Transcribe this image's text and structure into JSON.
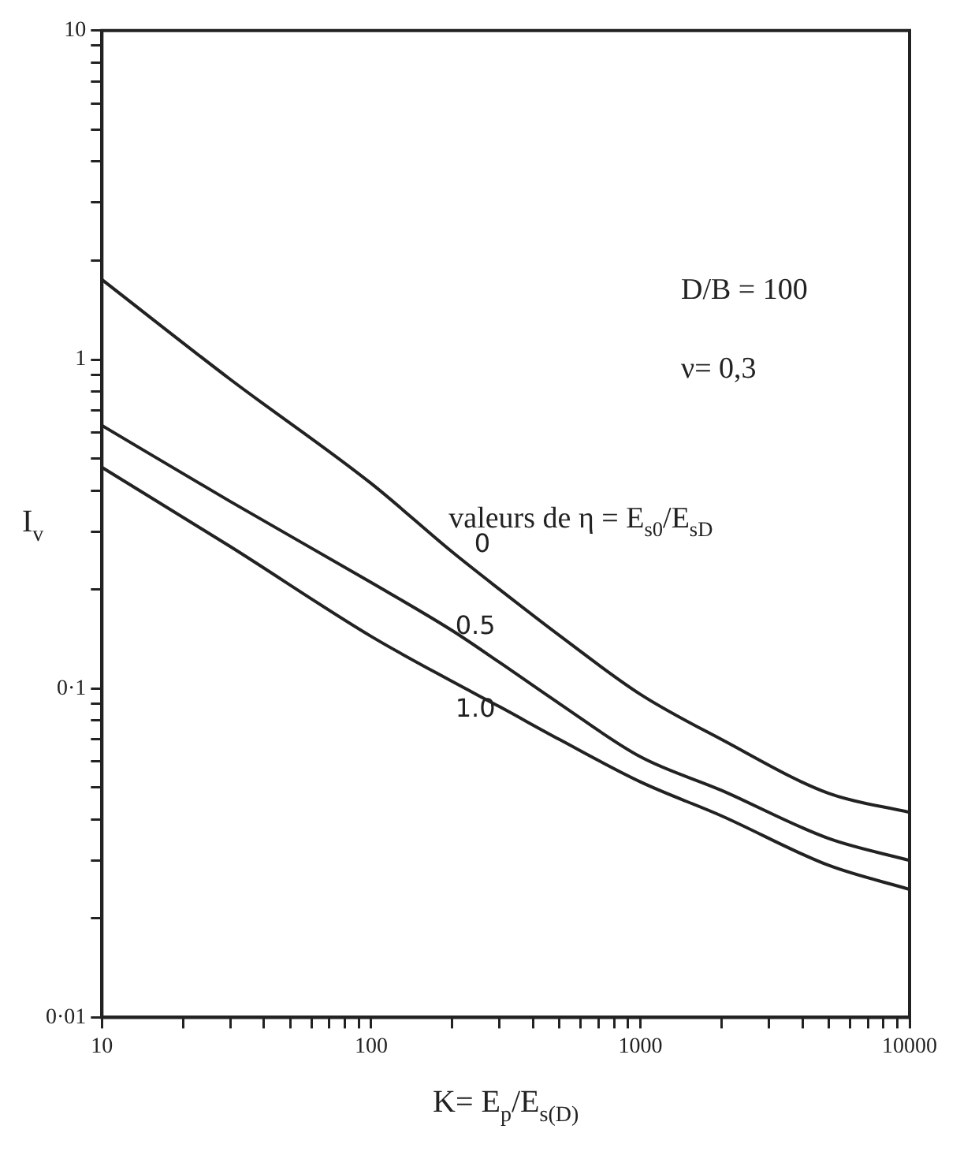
{
  "chart_data": {
    "type": "line",
    "xlabel": "K= E$_{p}$/E$_{s(D)}$",
    "ylabel": "I$_{v}$",
    "annotations": [
      "D/B = 100",
      "ν= 0,3",
      "valeurs de η = E$_{s0}$/E$_{sD}$"
    ],
    "x": [
      10,
      30,
      100,
      200,
      300,
      500,
      1000,
      2000,
      5000,
      10000
    ],
    "series": [
      {
        "name": "0",
        "color": "#222222",
        "values": [
          1.75,
          0.87,
          0.42,
          0.26,
          0.2,
          0.145,
          0.096,
          0.07,
          0.048,
          0.042
        ]
      },
      {
        "name": "0.5",
        "color": "#222222",
        "values": [
          0.63,
          0.37,
          0.21,
          0.15,
          0.12,
          0.09,
          0.062,
          0.049,
          0.035,
          0.03
        ]
      },
      {
        "name": "1.0",
        "color": "#222222",
        "values": [
          0.47,
          0.27,
          0.144,
          0.105,
          0.088,
          0.07,
          0.052,
          0.041,
          0.029,
          0.0245
        ]
      }
    ],
    "log": "xy",
    "xlim": [
      10,
      10000
    ],
    "ylim": [
      0.01,
      10
    ],
    "xticks": [
      10,
      {
        "value": 20,
        "label": null
      },
      {
        "value": 30,
        "label": null
      },
      {
        "value": 40,
        "label": null
      },
      {
        "value": 50,
        "label": null
      },
      {
        "value": 60,
        "label": null
      },
      {
        "value": 70,
        "label": null
      },
      {
        "value": 80,
        "label": null
      },
      {
        "value": 90,
        "label": null
      },
      100,
      {
        "value": 200,
        "label": null
      },
      {
        "value": 300,
        "label": null
      },
      {
        "value": 400,
        "label": null
      },
      {
        "value": 500,
        "label": null
      },
      {
        "value": 600,
        "label": null
      },
      {
        "value": 700,
        "label": null
      },
      {
        "value": 800,
        "label": null
      },
      {
        "value": 900,
        "label": null
      },
      1000,
      {
        "value": 2000,
        "label": null
      },
      {
        "value": 3000,
        "label": null
      },
      {
        "value": 4000,
        "label": null
      },
      {
        "value": 5000,
        "label": null
      },
      {
        "value": 6000,
        "label": null
      },
      {
        "value": 7000,
        "label": null
      },
      {
        "value": 8000,
        "label": null
      },
      {
        "value": 9000,
        "label": null
      },
      10000
    ],
    "yticks": [
      {
        "value": 0.01,
        "label": "0·01"
      },
      {
        "value": 0.02,
        "label": null
      },
      {
        "value": 0.03,
        "label": null
      },
      {
        "value": 0.04,
        "label": null
      },
      {
        "value": 0.05,
        "label": null
      },
      {
        "value": 0.06,
        "label": null
      },
      {
        "value": 0.07,
        "label": null
      },
      {
        "value": 0.08,
        "label": null
      },
      {
        "value": 0.09,
        "label": null
      },
      {
        "value": 0.1,
        "label": "0·1"
      },
      {
        "value": 0.2,
        "label": null
      },
      {
        "value": 0.3,
        "label": null
      },
      {
        "value": 0.4,
        "label": null
      },
      {
        "value": 0.5,
        "label": null
      },
      {
        "value": 0.6,
        "label": null
      },
      {
        "value": 0.7,
        "label": null
      },
      {
        "value": 0.8,
        "label": null
      },
      {
        "value": 0.9,
        "label": null
      },
      1,
      {
        "value": 2,
        "label": null
      },
      {
        "value": 3,
        "label": null
      },
      {
        "value": 4,
        "label": null
      },
      {
        "value": 5,
        "label": null
      },
      {
        "value": 6,
        "label": null
      },
      {
        "value": 7,
        "label": null
      },
      {
        "value": 8,
        "label": null
      },
      {
        "value": 9,
        "label": null
      },
      10
    ],
    "grid": false,
    "legend": false,
    "marker": "none",
    "line_style": "solid"
  }
}
